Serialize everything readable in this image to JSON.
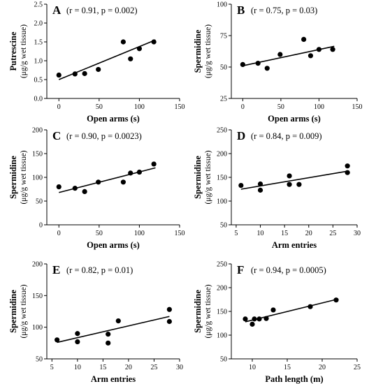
{
  "chart_data": [
    {
      "panel": "A",
      "type": "scatter",
      "stat": "(r = 0.91, p = 0.002)",
      "xlabel": "Open arms (s)",
      "ylabel": "Putrescine",
      "ylabel_unit": "(μg/g wet tissue)",
      "xlim": [
        -15,
        150
      ],
      "ylim": [
        0,
        2.5
      ],
      "xticks": [
        0,
        50,
        100,
        150
      ],
      "yticks": [
        "0.0",
        "0.5",
        "1.0",
        "1.5",
        "2.0",
        "2.5"
      ],
      "points": [
        [
          0,
          0.62
        ],
        [
          20,
          0.65
        ],
        [
          32,
          0.66
        ],
        [
          49,
          0.77
        ],
        [
          80,
          1.5
        ],
        [
          89,
          1.05
        ],
        [
          100,
          1.32
        ],
        [
          118,
          1.5
        ]
      ],
      "fit": [
        [
          0,
          0.5
        ],
        [
          120,
          1.55
        ]
      ]
    },
    {
      "panel": "B",
      "type": "scatter",
      "stat": "(r = 0.75, p = 0.03)",
      "xlabel": "Open arms (s)",
      "ylabel": "Spermidine",
      "ylabel_unit": "(μg/g wet tissue)",
      "xlim": [
        -15,
        150
      ],
      "ylim": [
        25,
        100
      ],
      "xticks": [
        0,
        50,
        100,
        150
      ],
      "yticks": [
        "25",
        "50",
        "75",
        "100"
      ],
      "points": [
        [
          0,
          52
        ],
        [
          20,
          53
        ],
        [
          32,
          49
        ],
        [
          49,
          60
        ],
        [
          80,
          72
        ],
        [
          89,
          59
        ],
        [
          100,
          64
        ],
        [
          118,
          64
        ]
      ],
      "fit": [
        [
          0,
          51
        ],
        [
          120,
          66.5
        ]
      ]
    },
    {
      "panel": "C",
      "type": "scatter",
      "stat": "(r = 0.90, p = 0.0023)",
      "xlabel": "Open arms (s)",
      "ylabel": "Spermidine",
      "ylabel_unit": "(μg/g wet tissue)",
      "xlim": [
        -15,
        150
      ],
      "ylim": [
        0,
        200
      ],
      "xticks": [
        0,
        50,
        100,
        150
      ],
      "yticks": [
        "0",
        "50",
        "100",
        "150",
        "200"
      ],
      "points": [
        [
          0,
          80
        ],
        [
          20,
          77
        ],
        [
          32,
          70
        ],
        [
          49,
          90
        ],
        [
          80,
          90
        ],
        [
          89,
          109
        ],
        [
          100,
          111
        ],
        [
          118,
          128
        ]
      ],
      "fit": [
        [
          0,
          68
        ],
        [
          120,
          120
        ]
      ]
    },
    {
      "panel": "D",
      "type": "scatter",
      "stat": "(r = 0.84, p = 0.009)",
      "xlabel": "Arm entries",
      "ylabel": "Spermidine",
      "ylabel_unit": "(μg/g wet tissue)",
      "xlim": [
        4,
        30
      ],
      "ylim": [
        50,
        250
      ],
      "xticks": [
        5,
        10,
        15,
        20,
        25,
        30
      ],
      "yticks": [
        "50",
        "100",
        "150",
        "200",
        "250"
      ],
      "points": [
        [
          6,
          133
        ],
        [
          10,
          136
        ],
        [
          10,
          123
        ],
        [
          16,
          153
        ],
        [
          16,
          135
        ],
        [
          18,
          135
        ],
        [
          28,
          174
        ],
        [
          28,
          160
        ]
      ],
      "fit": [
        [
          6,
          125
        ],
        [
          28,
          163
        ]
      ]
    },
    {
      "panel": "E",
      "type": "scatter",
      "stat": "(r = 0.82, p = 0.01)",
      "xlabel": "Arm entries",
      "ylabel": "Spermidine",
      "ylabel_unit": "(μg/g wet tissue)",
      "xlim": [
        4,
        30
      ],
      "ylim": [
        50,
        200
      ],
      "xticks": [
        5,
        10,
        15,
        20,
        25,
        30
      ],
      "yticks": [
        "50",
        "100",
        "150",
        "200"
      ],
      "points": [
        [
          6,
          80
        ],
        [
          10,
          90
        ],
        [
          10,
          77
        ],
        [
          16,
          89
        ],
        [
          16,
          75
        ],
        [
          18,
          110
        ],
        [
          28,
          128
        ],
        [
          28,
          109
        ]
      ],
      "fit": [
        [
          6,
          76
        ],
        [
          28,
          117
        ]
      ]
    },
    {
      "panel": "F",
      "type": "scatter",
      "stat": "(r = 0.94, p = 0.0005)",
      "xlabel": "Path length (m)",
      "ylabel": "Spermidine",
      "ylabel_unit": "(μg/g wet tissue)",
      "xlim": [
        7,
        25
      ],
      "ylim": [
        50,
        250
      ],
      "xticks": [
        10,
        15,
        20,
        25
      ],
      "yticks": [
        "50",
        "100",
        "150",
        "200",
        "250"
      ],
      "points": [
        [
          9,
          134
        ],
        [
          10,
          123
        ],
        [
          10.3,
          134
        ],
        [
          11,
          134
        ],
        [
          12,
          135
        ],
        [
          13,
          153
        ],
        [
          18.3,
          160
        ],
        [
          22,
          174
        ]
      ],
      "fit": [
        [
          9,
          128
        ],
        [
          22,
          175
        ]
      ]
    }
  ]
}
